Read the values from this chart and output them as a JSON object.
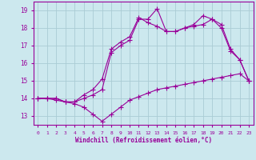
{
  "xlabel": "Windchill (Refroidissement éolien,°C)",
  "background_color": "#cce8ee",
  "grid_color": "#aaccd4",
  "line_color": "#990099",
  "xlim": [
    -0.5,
    23.5
  ],
  "ylim": [
    12.5,
    19.5
  ],
  "xticks": [
    0,
    1,
    2,
    3,
    4,
    5,
    6,
    7,
    8,
    9,
    10,
    11,
    12,
    13,
    14,
    15,
    16,
    17,
    18,
    19,
    20,
    21,
    22,
    23
  ],
  "yticks": [
    13,
    14,
    15,
    16,
    17,
    18,
    19
  ],
  "line1_x": [
    0,
    1,
    2,
    3,
    4,
    5,
    6,
    7,
    8,
    9,
    10,
    11,
    12,
    13,
    14,
    15,
    16,
    17,
    18,
    19,
    20,
    21,
    22,
    23
  ],
  "line1_y": [
    14.0,
    14.0,
    13.9,
    13.8,
    13.7,
    13.5,
    13.1,
    12.7,
    13.1,
    13.5,
    13.9,
    14.1,
    14.3,
    14.5,
    14.6,
    14.7,
    14.8,
    14.9,
    15.0,
    15.1,
    15.2,
    15.3,
    15.4,
    15.0
  ],
  "line2_x": [
    0,
    1,
    2,
    3,
    4,
    5,
    6,
    7,
    8,
    9,
    10,
    11,
    12,
    13,
    14,
    15,
    16,
    17,
    18,
    19,
    20,
    21,
    22,
    23
  ],
  "line2_y": [
    14.0,
    14.0,
    14.0,
    13.8,
    13.8,
    14.0,
    14.2,
    14.5,
    16.6,
    17.0,
    17.3,
    18.5,
    18.5,
    19.1,
    17.8,
    17.8,
    18.0,
    18.1,
    18.2,
    18.5,
    18.0,
    16.7,
    16.2,
    15.0
  ],
  "line3_x": [
    0,
    1,
    2,
    3,
    4,
    5,
    6,
    7,
    8,
    9,
    10,
    11,
    12,
    13,
    14,
    15,
    16,
    17,
    18,
    19,
    20,
    21,
    22,
    23
  ],
  "line3_y": [
    14.0,
    14.0,
    14.0,
    13.8,
    13.8,
    14.2,
    14.5,
    15.1,
    16.8,
    17.2,
    17.5,
    18.6,
    18.3,
    18.1,
    17.8,
    17.8,
    18.0,
    18.2,
    18.7,
    18.5,
    18.2,
    16.8,
    16.2,
    15.0
  ]
}
